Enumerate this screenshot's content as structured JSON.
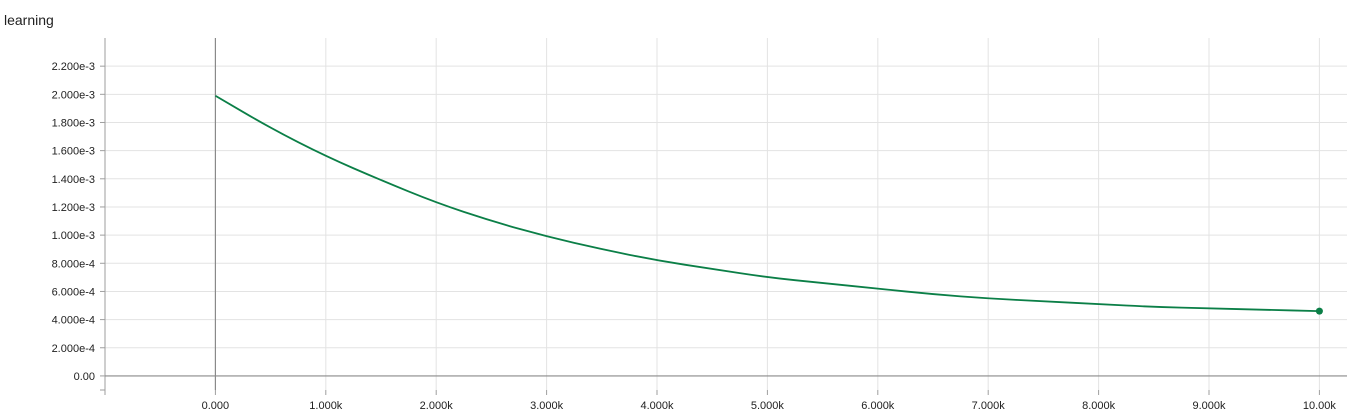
{
  "chart_data": {
    "type": "line",
    "title": "learning",
    "xlabel": "",
    "ylabel": "",
    "xlim": [
      -1000,
      10250
    ],
    "ylim": [
      -0.0001,
      0.0024
    ],
    "x_ticks": [
      0,
      1000,
      2000,
      3000,
      4000,
      5000,
      6000,
      7000,
      8000,
      9000,
      10000
    ],
    "x_tick_labels": [
      "0.000",
      "1.000k",
      "2.000k",
      "3.000k",
      "4.000k",
      "5.000k",
      "6.000k",
      "7.000k",
      "8.000k",
      "9.000k",
      "10.00k"
    ],
    "y_ticks": [
      0,
      0.0002,
      0.0004,
      0.0006,
      0.0008,
      0.001,
      0.0012,
      0.0014,
      0.0016,
      0.0018,
      0.002,
      0.0022
    ],
    "y_tick_labels": [
      "0.00",
      "2.000e-4",
      "4.000e-4",
      "6.000e-4",
      "8.000e-4",
      "1.000e-3",
      "1.200e-3",
      "1.400e-3",
      "1.600e-3",
      "1.800e-3",
      "2.000e-3",
      "2.200e-3"
    ],
    "grid": true,
    "series": [
      {
        "color": "#0b7f47",
        "x": [
          0,
          500,
          1000,
          1500,
          2000,
          2500,
          3000,
          3500,
          4000,
          4500,
          5000,
          5500,
          6000,
          6500,
          7000,
          7500,
          8000,
          8500,
          9000,
          9500,
          10000
        ],
        "y": [
          0.00199,
          0.00176,
          0.00156,
          0.00139,
          0.00123,
          0.0011,
          0.00099,
          0.0009,
          0.00082,
          0.00076,
          0.0007,
          0.00066,
          0.00062,
          0.00058,
          0.00055,
          0.00053,
          0.00051,
          0.00049,
          0.00048,
          0.00047,
          0.00046
        ]
      }
    ]
  }
}
